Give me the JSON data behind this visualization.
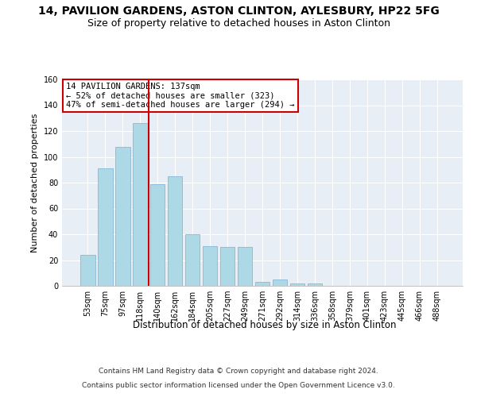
{
  "title": "14, PAVILION GARDENS, ASTON CLINTON, AYLESBURY, HP22 5FG",
  "subtitle": "Size of property relative to detached houses in Aston Clinton",
  "xlabel": "Distribution of detached houses by size in Aston Clinton",
  "ylabel": "Number of detached properties",
  "categories": [
    "53sqm",
    "75sqm",
    "97sqm",
    "118sqm",
    "140sqm",
    "162sqm",
    "184sqm",
    "205sqm",
    "227sqm",
    "249sqm",
    "271sqm",
    "292sqm",
    "314sqm",
    "336sqm",
    "358sqm",
    "379sqm",
    "401sqm",
    "423sqm",
    "445sqm",
    "466sqm",
    "488sqm"
  ],
  "values": [
    24,
    91,
    108,
    126,
    79,
    85,
    40,
    31,
    30,
    30,
    3,
    5,
    2,
    2,
    0,
    0,
    0,
    0,
    0,
    0,
    0
  ],
  "bar_color": "#add8e6",
  "bar_edgecolor": "#7bafd4",
  "vline_color": "#cc0000",
  "vline_index": 3.5,
  "ylim": [
    0,
    160
  ],
  "yticks": [
    0,
    20,
    40,
    60,
    80,
    100,
    120,
    140,
    160
  ],
  "annotation_title": "14 PAVILION GARDENS: 137sqm",
  "annotation_line1": "← 52% of detached houses are smaller (323)",
  "annotation_line2": "47% of semi-detached houses are larger (294) →",
  "annotation_box_edgecolor": "#cc0000",
  "footer_line1": "Contains HM Land Registry data © Crown copyright and database right 2024.",
  "footer_line2": "Contains public sector information licensed under the Open Government Licence v3.0.",
  "bg_color": "#e8eef5",
  "grid_color": "#ffffff",
  "title_fontsize": 10,
  "subtitle_fontsize": 9,
  "xlabel_fontsize": 8.5,
  "ylabel_fontsize": 8,
  "tick_fontsize": 7,
  "annotation_fontsize": 7.5,
  "footer_fontsize": 6.5
}
